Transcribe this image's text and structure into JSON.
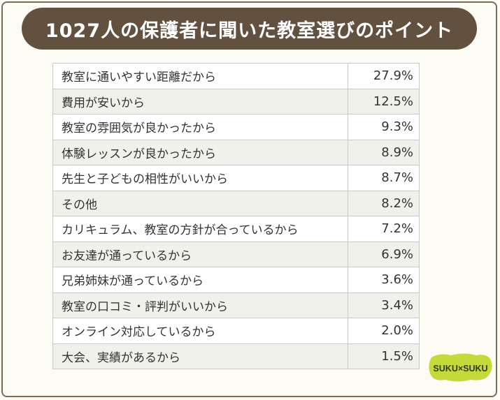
{
  "header": {
    "title": "1027人の保護者に聞いた教室選びのポイント"
  },
  "chart_data": {
    "type": "table",
    "title": "1027人の保護者に聞いた教室選びのポイント",
    "rows": [
      {
        "label": "教室に通いやすい距離だから",
        "value": "27.9%"
      },
      {
        "label": "費用が安いから",
        "value": "12.5%"
      },
      {
        "label": "教室の雰囲気が良かったから",
        "value": "9.3%"
      },
      {
        "label": "体験レッスンが良かったから",
        "value": "8.9%"
      },
      {
        "label": "先生と子どもの相性がいいから",
        "value": "8.7%"
      },
      {
        "label": "その他",
        "value": "8.2%"
      },
      {
        "label": "カリキュラム、教室の方針が合っているから",
        "value": "7.2%"
      },
      {
        "label": "お友達が通っているから",
        "value": "6.9%"
      },
      {
        "label": "兄弟姉妹が通っているから",
        "value": "3.6%"
      },
      {
        "label": "教室の口コミ・評判がいいから",
        "value": "3.4%"
      },
      {
        "label": "オンライン対応しているから",
        "value": "2.0%"
      },
      {
        "label": "大会、実績があるから",
        "value": "1.5%"
      }
    ]
  },
  "logo": {
    "text": "SUKU×SUKU"
  },
  "colors": {
    "title_bg": "#635140",
    "logo_bg": "#c5d93a",
    "border": "#7b6a55"
  }
}
